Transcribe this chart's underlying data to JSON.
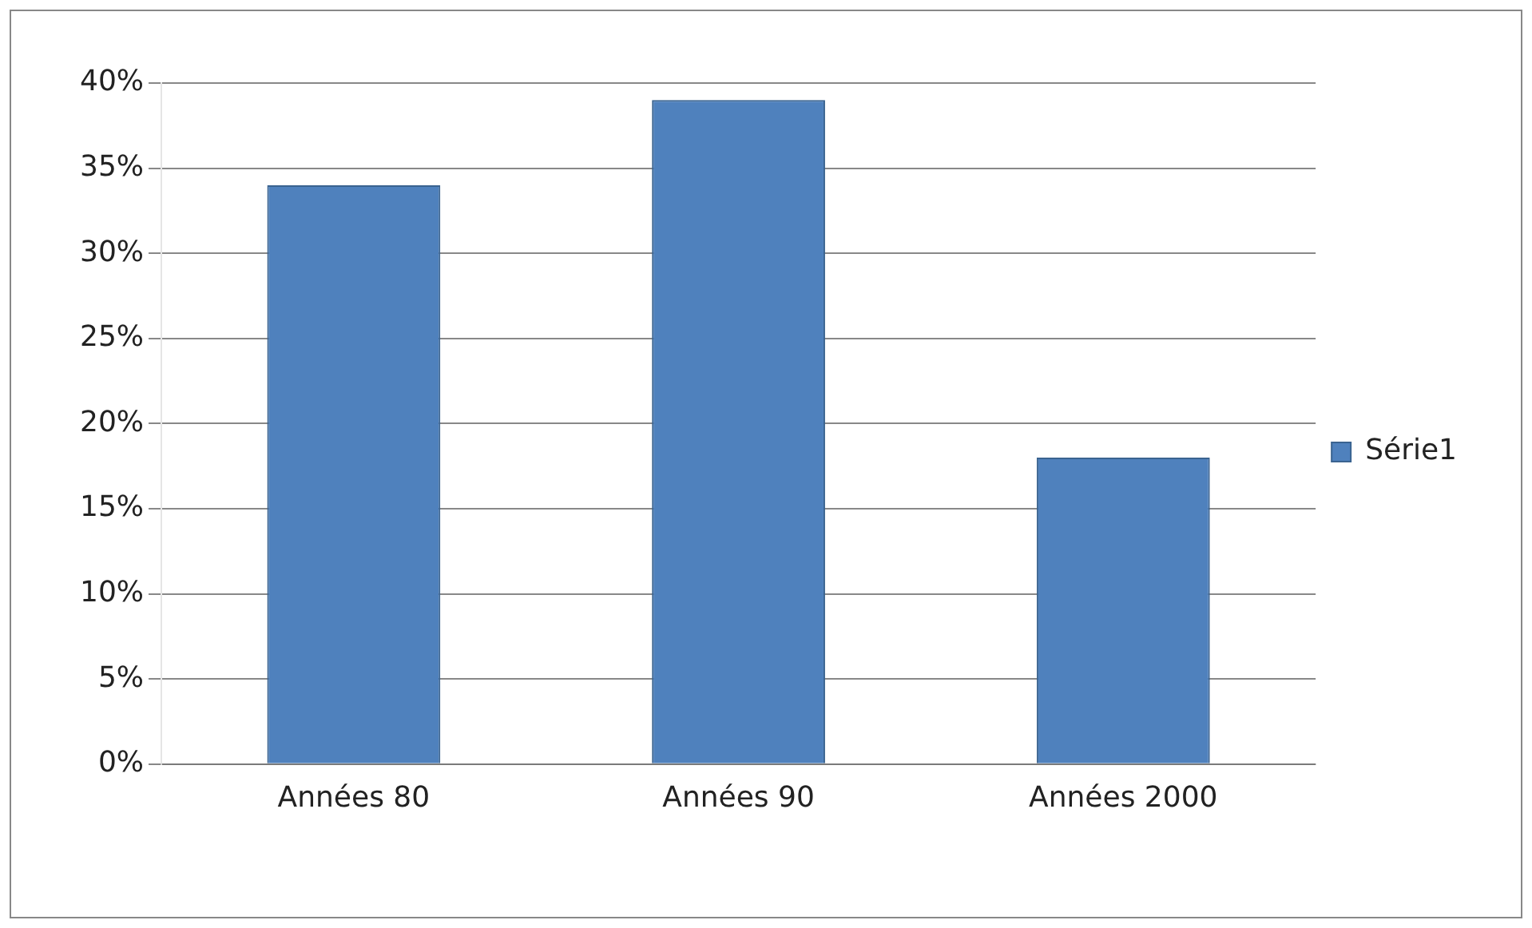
{
  "chart_data": {
    "type": "bar",
    "categories": [
      "Années 80",
      "Années 90",
      "Années 2000"
    ],
    "series": [
      {
        "name": "Série1",
        "color": "#4f81bd",
        "values": [
          34,
          39,
          18
        ]
      }
    ],
    "ylim": [
      0,
      40
    ],
    "yticks": [
      {
        "value": 0,
        "label": "0%"
      },
      {
        "value": 5,
        "label": "5%"
      },
      {
        "value": 10,
        "label": "10%"
      },
      {
        "value": 15,
        "label": "15%"
      },
      {
        "value": 20,
        "label": "20%"
      },
      {
        "value": 25,
        "label": "25%"
      },
      {
        "value": 30,
        "label": "30%"
      },
      {
        "value": 35,
        "label": "35%"
      },
      {
        "value": 40,
        "label": "40%"
      }
    ],
    "grid": "y",
    "legend": "right"
  }
}
